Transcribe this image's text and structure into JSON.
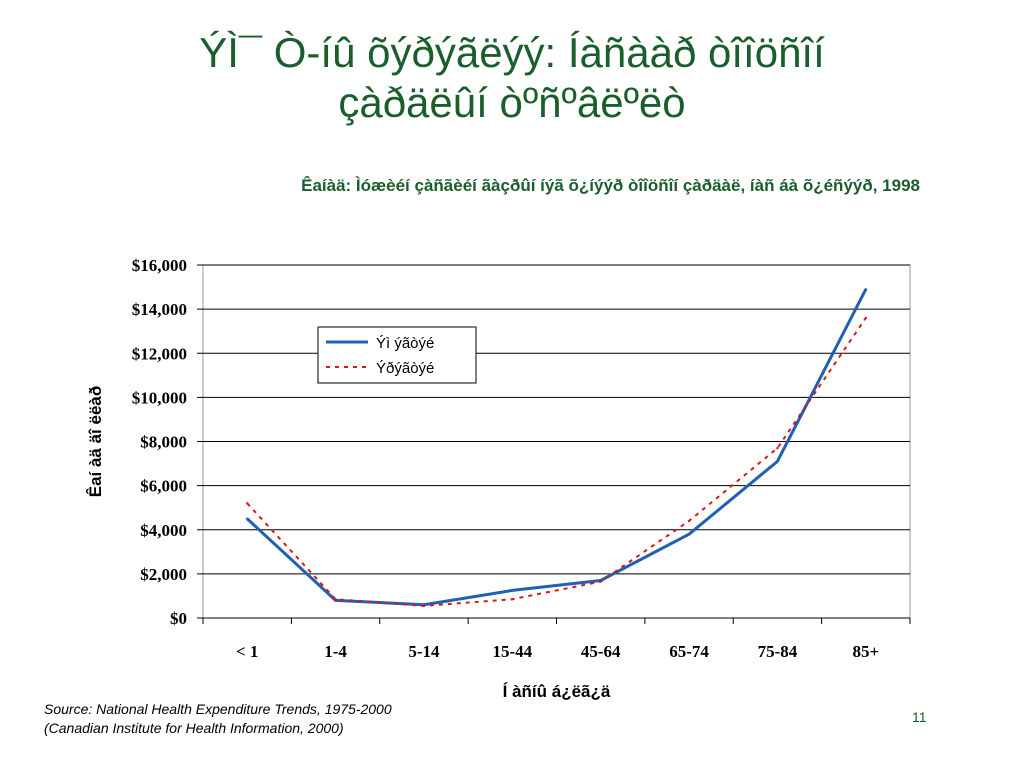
{
  "slide": {
    "title_line1": "ÝÌ¯ Ò-íû õýðýãëýý: Íàñààð òîîöñîí",
    "title_line2": "çàðäëûí òºñºâëºëò",
    "subtitle": "Êaíàä: Ìóæèéí çàñãèéí ãàçðûí íýã õ¿íýýð òîîöñîí çàðäàë, íàñ áà õ¿éñýýð, 1998",
    "source": "Source: National Health Expenditure Trends, 1975-2000 (Canadian Institute for Health Information, 2000)",
    "page_number": "11"
  },
  "chart_data": {
    "type": "line",
    "title": "",
    "xlabel": "Í àñíû á¿ëã¿ä",
    "ylabel": "Êaí àä äî ëëàð",
    "categories": [
      "< 1",
      "1-4",
      "5-14",
      "15-44",
      "45-64",
      "65-74",
      "75-84",
      "85+"
    ],
    "ylim": [
      0,
      16000
    ],
    "yticks": [
      0,
      2000,
      4000,
      6000,
      8000,
      10000,
      12000,
      14000,
      16000
    ],
    "ytick_labels": [
      "$0",
      "$2,000",
      "$4,000",
      "$6,000",
      "$8,000",
      "$10,000",
      "$12,000",
      "$14,000",
      "$16,000"
    ],
    "grid": true,
    "legend_position": "upper-middle",
    "series": [
      {
        "name": "Ýì ýãòýé",
        "values": [
          4500,
          800,
          600,
          1250,
          1700,
          3800,
          7100,
          14900
        ],
        "color": "#1f5fb4",
        "style": "solid"
      },
      {
        "name": "Ýðýãòýé",
        "values": [
          5200,
          850,
          550,
          850,
          1650,
          4400,
          7700,
          13600
        ],
        "color": "#d81818",
        "style": "dotted"
      }
    ]
  }
}
